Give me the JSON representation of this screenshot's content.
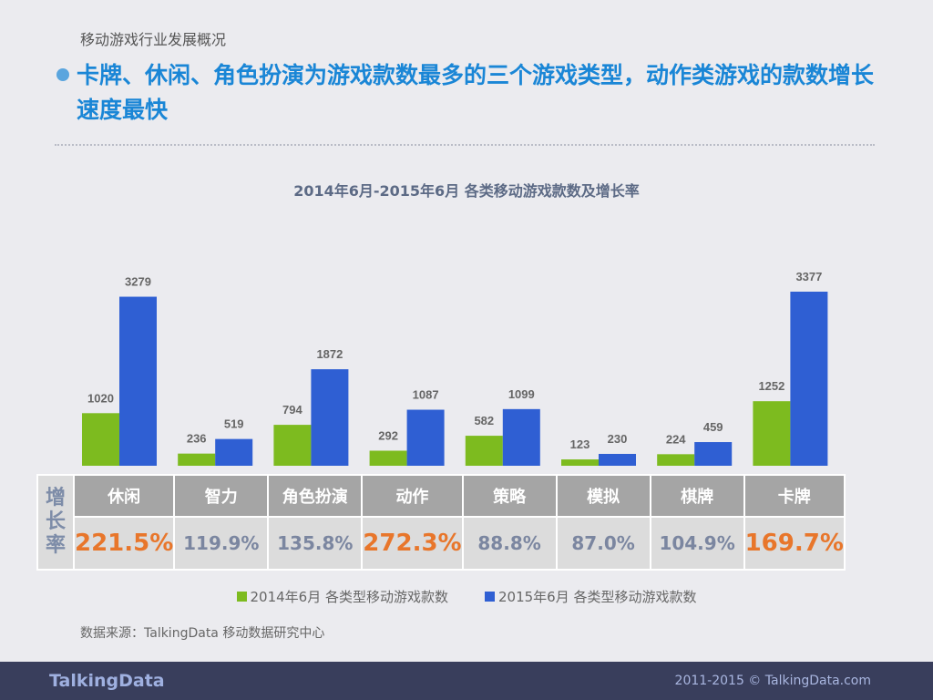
{
  "header": {
    "section": "移动游戏行业发展概况",
    "headline": "卡牌、休闲、角色扮演为游戏款数最多的三个游戏类型，动作类游戏的款数增长速度最快"
  },
  "chart_data": {
    "type": "bar",
    "title": "2014年6月-2015年6月 各类移动游戏款数及增长率",
    "categories": [
      "休闲",
      "智力",
      "角色扮演",
      "动作",
      "策略",
      "模拟",
      "棋牌",
      "卡牌"
    ],
    "series": [
      {
        "name": "2014年6月 各类型移动游戏款数",
        "color": "#7dbb1f",
        "values": [
          1020,
          236,
          794,
          292,
          582,
          123,
          224,
          1252
        ]
      },
      {
        "name": "2015年6月 各类型移动游戏款数",
        "color": "#2f5fd3",
        "values": [
          3279,
          519,
          1872,
          1087,
          1099,
          230,
          459,
          3377
        ]
      }
    ],
    "growth_label": "增长率",
    "growth": [
      "221.5%",
      "119.9%",
      "135.8%",
      "272.3%",
      "88.8%",
      "87.0%",
      "104.9%",
      "169.7%"
    ],
    "highlight_growth": [
      true,
      false,
      false,
      true,
      false,
      false,
      false,
      true
    ],
    "highlight_color": "#e8762b",
    "legend": "bottom"
  },
  "source": "数据来源：TalkingData 移动数据研究中心",
  "footer": {
    "logo": "TalkingData",
    "copyright": "2011-2015 © TalkingData.com"
  }
}
